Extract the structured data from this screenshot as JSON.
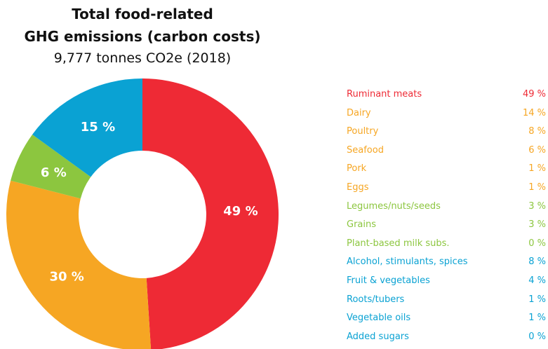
{
  "chart_data": {
    "type": "pie",
    "title": [
      "Total food-related",
      "GHG emissions (carbon costs)"
    ],
    "subtitle": "9,777 tonnes CO2e (2018)",
    "donut": true,
    "slices": [
      {
        "label": "49 %",
        "value": 49,
        "color": "#ee2a35"
      },
      {
        "label": "30 %",
        "value": 30,
        "color": "#f6a623"
      },
      {
        "label": "6 %",
        "value": 6,
        "color": "#8cc63f"
      },
      {
        "label": "15 %",
        "value": 15,
        "color": "#0aa2d3"
      }
    ],
    "legend": [
      {
        "label": "Ruminant meats",
        "value": "49 %",
        "color": "#ee2a35"
      },
      {
        "label": "Dairy",
        "value": "14 %",
        "color": "#f6a623"
      },
      {
        "label": "Poultry",
        "value": "8 %",
        "color": "#f6a623"
      },
      {
        "label": "Seafood",
        "value": "6 %",
        "color": "#f6a623"
      },
      {
        "label": "Pork",
        "value": "1 %",
        "color": "#f6a623"
      },
      {
        "label": "Eggs",
        "value": "1 %",
        "color": "#f6a623"
      },
      {
        "label": "Legumes/nuts/seeds",
        "value": "3 %",
        "color": "#8cc63f"
      },
      {
        "label": "Grains",
        "value": "3 %",
        "color": "#8cc63f"
      },
      {
        "label": "Plant-based milk subs.",
        "value": "0 %",
        "color": "#8cc63f"
      },
      {
        "label": "Alcohol, stimulants, spices",
        "value": "8 %",
        "color": "#0aa2d3"
      },
      {
        "label": "Fruit & vegetables",
        "value": "4 %",
        "color": "#0aa2d3"
      },
      {
        "label": "Roots/tubers",
        "value": "1 %",
        "color": "#0aa2d3"
      },
      {
        "label": "Vegetable oils",
        "value": "1 %",
        "color": "#0aa2d3"
      },
      {
        "label": "Added sugars",
        "value": "0 %",
        "color": "#0aa2d3"
      }
    ]
  }
}
